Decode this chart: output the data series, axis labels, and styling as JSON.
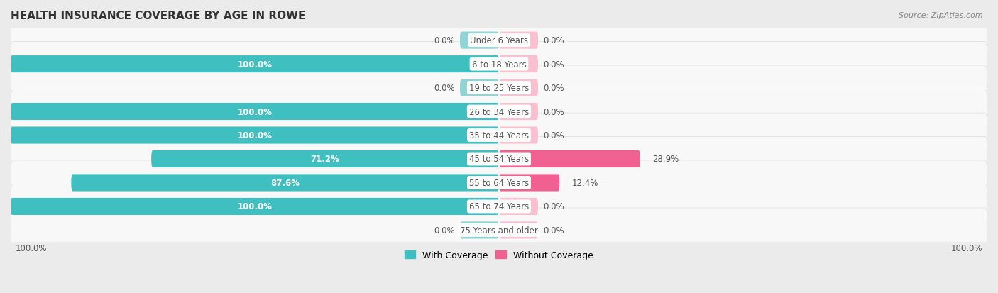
{
  "title": "HEALTH INSURANCE COVERAGE BY AGE IN ROWE",
  "source": "Source: ZipAtlas.com",
  "categories": [
    "Under 6 Years",
    "6 to 18 Years",
    "19 to 25 Years",
    "26 to 34 Years",
    "35 to 44 Years",
    "45 to 54 Years",
    "55 to 64 Years",
    "65 to 74 Years",
    "75 Years and older"
  ],
  "with_coverage": [
    0.0,
    100.0,
    0.0,
    100.0,
    100.0,
    71.2,
    87.6,
    100.0,
    0.0
  ],
  "without_coverage": [
    0.0,
    0.0,
    0.0,
    0.0,
    0.0,
    28.9,
    12.4,
    0.0,
    0.0
  ],
  "color_with": "#3FBFBF",
  "color_without": "#F06090",
  "color_with_light": "#90D4D4",
  "color_without_light": "#F8C0D0",
  "bg_color": "#EBEBEB",
  "row_bg_color": "#F8F8F8",
  "row_alt_bg_color": "#F0F0F0",
  "title_color": "#333333",
  "text_color_white": "#FFFFFF",
  "text_color_dark": "#555555"
}
